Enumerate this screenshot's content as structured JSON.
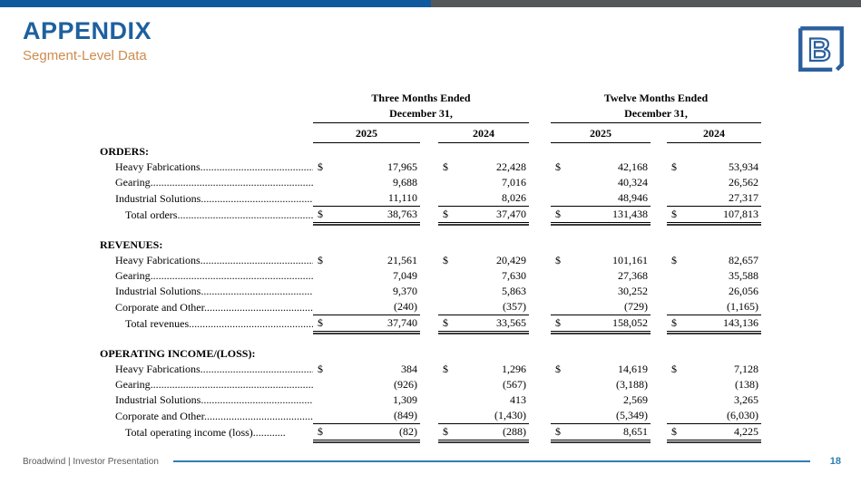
{
  "header": {
    "title": "APPENDIX",
    "subtitle": "Segment-Level Data"
  },
  "logo": {
    "letter": "B"
  },
  "footer": {
    "left_text": "Broadwind | Investor Presentation",
    "page_number": "18"
  },
  "colors": {
    "topbar_blue": "#10599E",
    "topbar_gray": "#54585A",
    "title_blue": "#1E609F",
    "subtitle_orange": "#CD8C4E",
    "footer_blue": "#2E7EB3",
    "logo_blue": "#2B5F9E"
  },
  "table": {
    "currency": "$",
    "groups": [
      {
        "line1": "Three Months Ended",
        "line2": "December 31,"
      },
      {
        "line1": "Twelve Months Ended",
        "line2": "December 31,"
      }
    ],
    "years": [
      "2025",
      "2024",
      "2025",
      "2024"
    ],
    "sections": [
      {
        "header": "ORDERS:",
        "rows": [
          {
            "label": "Heavy Fabrications.................................................",
            "style": "item",
            "dollar": true,
            "values": [
              "17,965",
              "22,428",
              "42,168",
              "53,934"
            ]
          },
          {
            "label": "Gearing..............................................................",
            "style": "item",
            "dollar": false,
            "values": [
              "9,688",
              "7,016",
              "40,324",
              "26,562"
            ]
          },
          {
            "label": "Industrial Solutions...............................................",
            "style": "item-u",
            "dollar": false,
            "values": [
              "11,110",
              "8,026",
              "48,946",
              "27,317"
            ]
          },
          {
            "label": "Total orders.....................................................",
            "style": "total",
            "dollar": true,
            "values": [
              "38,763",
              "37,470",
              "131,438",
              "107,813"
            ]
          }
        ]
      },
      {
        "header": "REVENUES:",
        "rows": [
          {
            "label": "Heavy Fabrications.................................................",
            "style": "item",
            "dollar": true,
            "values": [
              "21,561",
              "20,429",
              "101,161",
              "82,657"
            ]
          },
          {
            "label": "Gearing..............................................................",
            "style": "item",
            "dollar": false,
            "values": [
              "7,049",
              "7,630",
              "27,368",
              "35,588"
            ]
          },
          {
            "label": "Industrial Solutions...............................................",
            "style": "item",
            "dollar": false,
            "values": [
              "9,370",
              "5,863",
              "30,252",
              "26,056"
            ]
          },
          {
            "label": "Corporate and Other.............................................",
            "style": "item-u",
            "dollar": false,
            "values": [
              "(240)",
              "(357)",
              "(729)",
              "(1,165)"
            ]
          },
          {
            "label": "Total revenues..................................................",
            "style": "total",
            "dollar": true,
            "values": [
              "37,740",
              "33,565",
              "158,052",
              "143,136"
            ]
          }
        ]
      },
      {
        "header": "OPERATING INCOME/(LOSS):",
        "rows": [
          {
            "label": "Heavy Fabrications.................................................",
            "style": "item",
            "dollar": true,
            "values": [
              "384",
              "1,296",
              "14,619",
              "7,128"
            ]
          },
          {
            "label": "Gearing..............................................................",
            "style": "item",
            "dollar": false,
            "values": [
              "(926)",
              "(567)",
              "(3,188)",
              "(138)"
            ]
          },
          {
            "label": "Industrial Solutions...............................................",
            "style": "item",
            "dollar": false,
            "values": [
              "1,309",
              "413",
              "2,569",
              "3,265"
            ]
          },
          {
            "label": "Corporate and Other.............................................",
            "style": "item-u",
            "dollar": false,
            "values": [
              "(849)",
              "(1,430)",
              "(5,349)",
              "(6,030)"
            ]
          },
          {
            "label": "Total operating income (loss)............",
            "style": "total",
            "dollar": true,
            "values": [
              "(82)",
              "(288)",
              "8,651",
              "4,225"
            ]
          }
        ]
      }
    ]
  }
}
